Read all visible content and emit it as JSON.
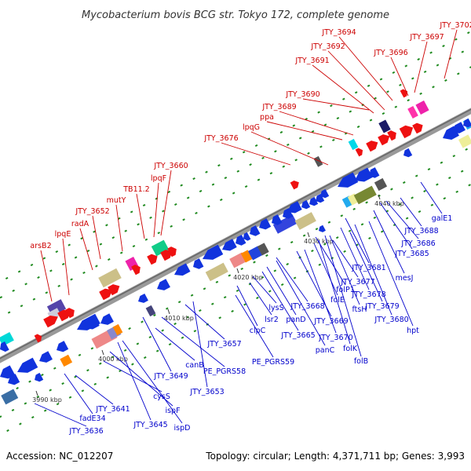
{
  "title": "Mycobacterium bovis BCG str. Tokyo 172, complete genome",
  "footer": {
    "accession": "Accession: NC_012207",
    "summary": "Topology: circular; Length: 4,371,711 bp; Genes: 3,993"
  },
  "colors": {
    "backbone": "#8a8a8a",
    "forward_label": "#cc0000",
    "reverse_label": "#0000cc",
    "forward_arrow": "#ee1111",
    "reverse_arrow": "#1133dd",
    "grid_dot": "#1f8a1f"
  },
  "ticks": [
    {
      "label": "3990 kbp"
    },
    {
      "label": "4000 kbp"
    },
    {
      "label": "4010 kbp"
    },
    {
      "label": "4020 kbp"
    },
    {
      "label": "4030 kbp"
    },
    {
      "label": "4040 kbp"
    }
  ],
  "forward_labels": [
    "arsB2",
    "lpqE",
    "radA",
    "JTY_3652",
    "mutY",
    "TB11.2",
    "lpqF",
    "JTY_3660",
    "JTY_3676",
    "lpqG",
    "ppa",
    "JTY_3689",
    "JTY_3690",
    "JTY_3691",
    "JTY_3692",
    "JTY_3694",
    "JTY_3696",
    "JTY_3697",
    "JTY_3702"
  ],
  "reverse_labels": [
    "JTY_3636",
    "fadE34",
    "JTY_3641",
    "JTY_3645",
    "ispD",
    "ispF",
    "cysS",
    "JTY_3649",
    "canB",
    "JTY_3653",
    "PE_PGRS58",
    "JTY_3657",
    "PE_PGRS59",
    "clpC",
    "lsr2",
    "lysS",
    "JTY_3665",
    "panC",
    "panD",
    "JTY_3668",
    "JTY_3669",
    "JTY_3670",
    "folK",
    "folB",
    "folE",
    "folP1",
    "ftsH",
    "JTY_3677",
    "JTY_3678",
    "JTY_3679",
    "JTY_3680",
    "hpt",
    "JTY_3681",
    "mesJ",
    "JTY_3685",
    "JTY_3686",
    "JTY_3688",
    "galE1"
  ]
}
